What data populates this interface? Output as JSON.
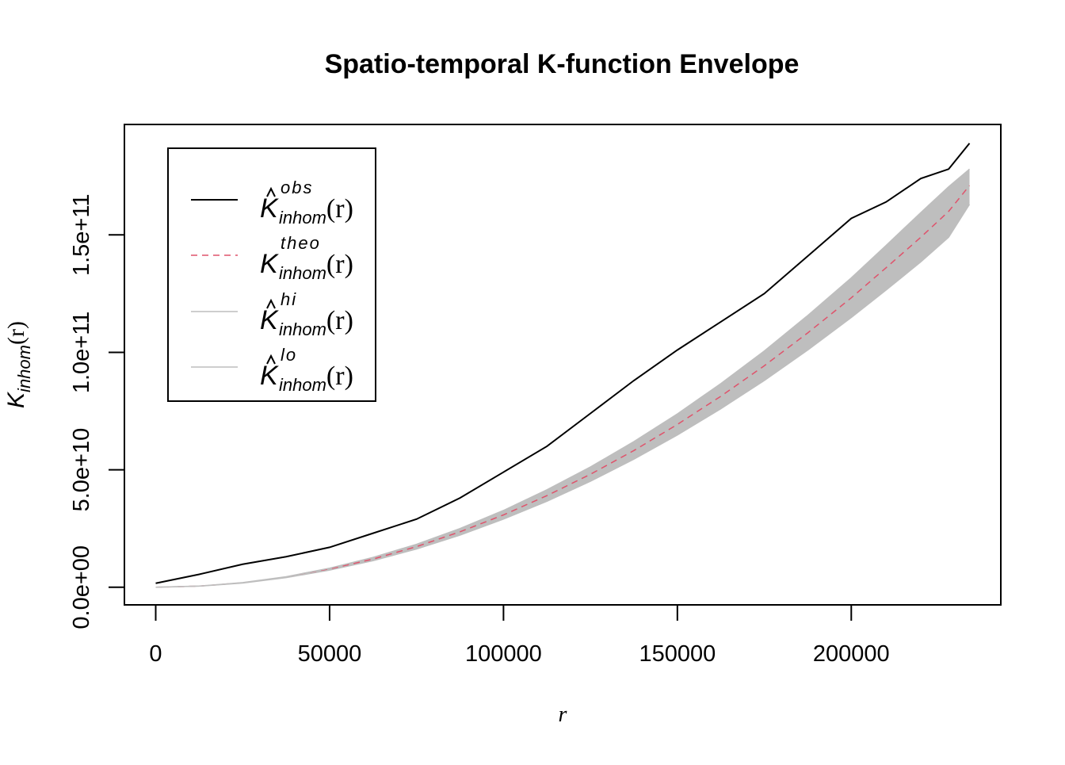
{
  "chart_data": {
    "type": "line",
    "title": "Spatio-temporal K-function Envelope",
    "xlabel": "r",
    "ylabel": {
      "symbol": "K",
      "sub": "inhom",
      "arg": "(r)"
    },
    "xlim": [
      -9000,
      243000
    ],
    "ylim": [
      -7500000000.0,
      197000000000.0
    ],
    "xticks": [
      0,
      50000,
      100000,
      150000,
      200000
    ],
    "xtick_labels": [
      "0",
      "50000",
      "100000",
      "150000",
      "200000"
    ],
    "yticks": [
      0,
      50000000000.0,
      100000000000.0,
      150000000000.0
    ],
    "ytick_labels": [
      "0.0e+00",
      "5.0e+10",
      "1.0e+11",
      "1.5e+11"
    ],
    "grid": false,
    "legend_position": "top-left",
    "x": [
      0,
      12500,
      25000,
      37500,
      50000,
      62500,
      75000,
      87500,
      100000,
      112500,
      125000,
      137500,
      150000,
      162500,
      175000,
      187500,
      200000,
      210000,
      220000,
      228000,
      234000
    ],
    "series": [
      {
        "name": "obs",
        "color": "#000000",
        "dash": "solid",
        "legend": {
          "symbol": "K",
          "hat": true,
          "sup": "obs",
          "sub": "inhom",
          "arg": "(r)"
        },
        "values": [
          1700000000.0,
          5500000000.0,
          9800000000.0,
          13000000000.0,
          17000000000.0,
          23000000000.0,
          29000000000.0,
          38000000000.0,
          49000000000.0,
          60000000000.0,
          74000000000.0,
          88000000000.0,
          101000000000.0,
          113000000000.0,
          125000000000.0,
          141000000000.0,
          157000000000.0,
          164000000000.0,
          174000000000.0,
          178000000000.0,
          189000000000.0
        ]
      },
      {
        "name": "theo",
        "color": "#DF536B",
        "dash": "dashed",
        "legend": {
          "symbol": "K",
          "hat": false,
          "sup": "theo",
          "sub": "inhom",
          "arg": "(r)"
        },
        "values": [
          0,
          480000000.0,
          1900000000.0,
          4300000000.0,
          7700000000.0,
          12000000000.0,
          17300000000.0,
          23600000000.0,
          30800000000.0,
          39000000000.0,
          48100000000.0,
          58200000000.0,
          69300000000.0,
          81300000000.0,
          94300000000.0,
          108300000000.0,
          123200000000.0,
          136000000000.0,
          149000000000.0,
          160000000000.0,
          171000000000.0
        ]
      },
      {
        "name": "hi",
        "color": "#BEBEBE",
        "dash": "solid",
        "legend": {
          "symbol": "K",
          "hat": true,
          "sup": "hi",
          "sub": "inhom",
          "arg": "(r)"
        },
        "values": [
          0,
          500000000.0,
          2000000000.0,
          4500000000.0,
          8100000000.0,
          12700000000.0,
          18300000000.0,
          25000000000.0,
          32700000000.0,
          41500000000.0,
          51200000000.0,
          62000000000.0,
          73800000000.0,
          86700000000.0,
          100600000000.0,
          115700000000.0,
          131700000000.0,
          145500000000.0,
          159500000000.0,
          170500000000.0,
          178000000000.0
        ]
      },
      {
        "name": "lo",
        "color": "#BEBEBE",
        "dash": "solid",
        "legend": {
          "symbol": "K",
          "hat": true,
          "sup": "lo",
          "sub": "inhom",
          "arg": "(r)"
        },
        "values": [
          0,
          460000000.0,
          1800000000.0,
          4100000000.0,
          7300000000.0,
          11300000000.0,
          16300000000.0,
          22200000000.0,
          29000000000.0,
          36600000000.0,
          45100000000.0,
          54500000000.0,
          64800000000.0,
          76000000000.0,
          88000000000.0,
          101000000000.0,
          114800000000.0,
          126500000000.0,
          138500000000.0,
          149000000000.0,
          163000000000.0
        ]
      }
    ]
  }
}
